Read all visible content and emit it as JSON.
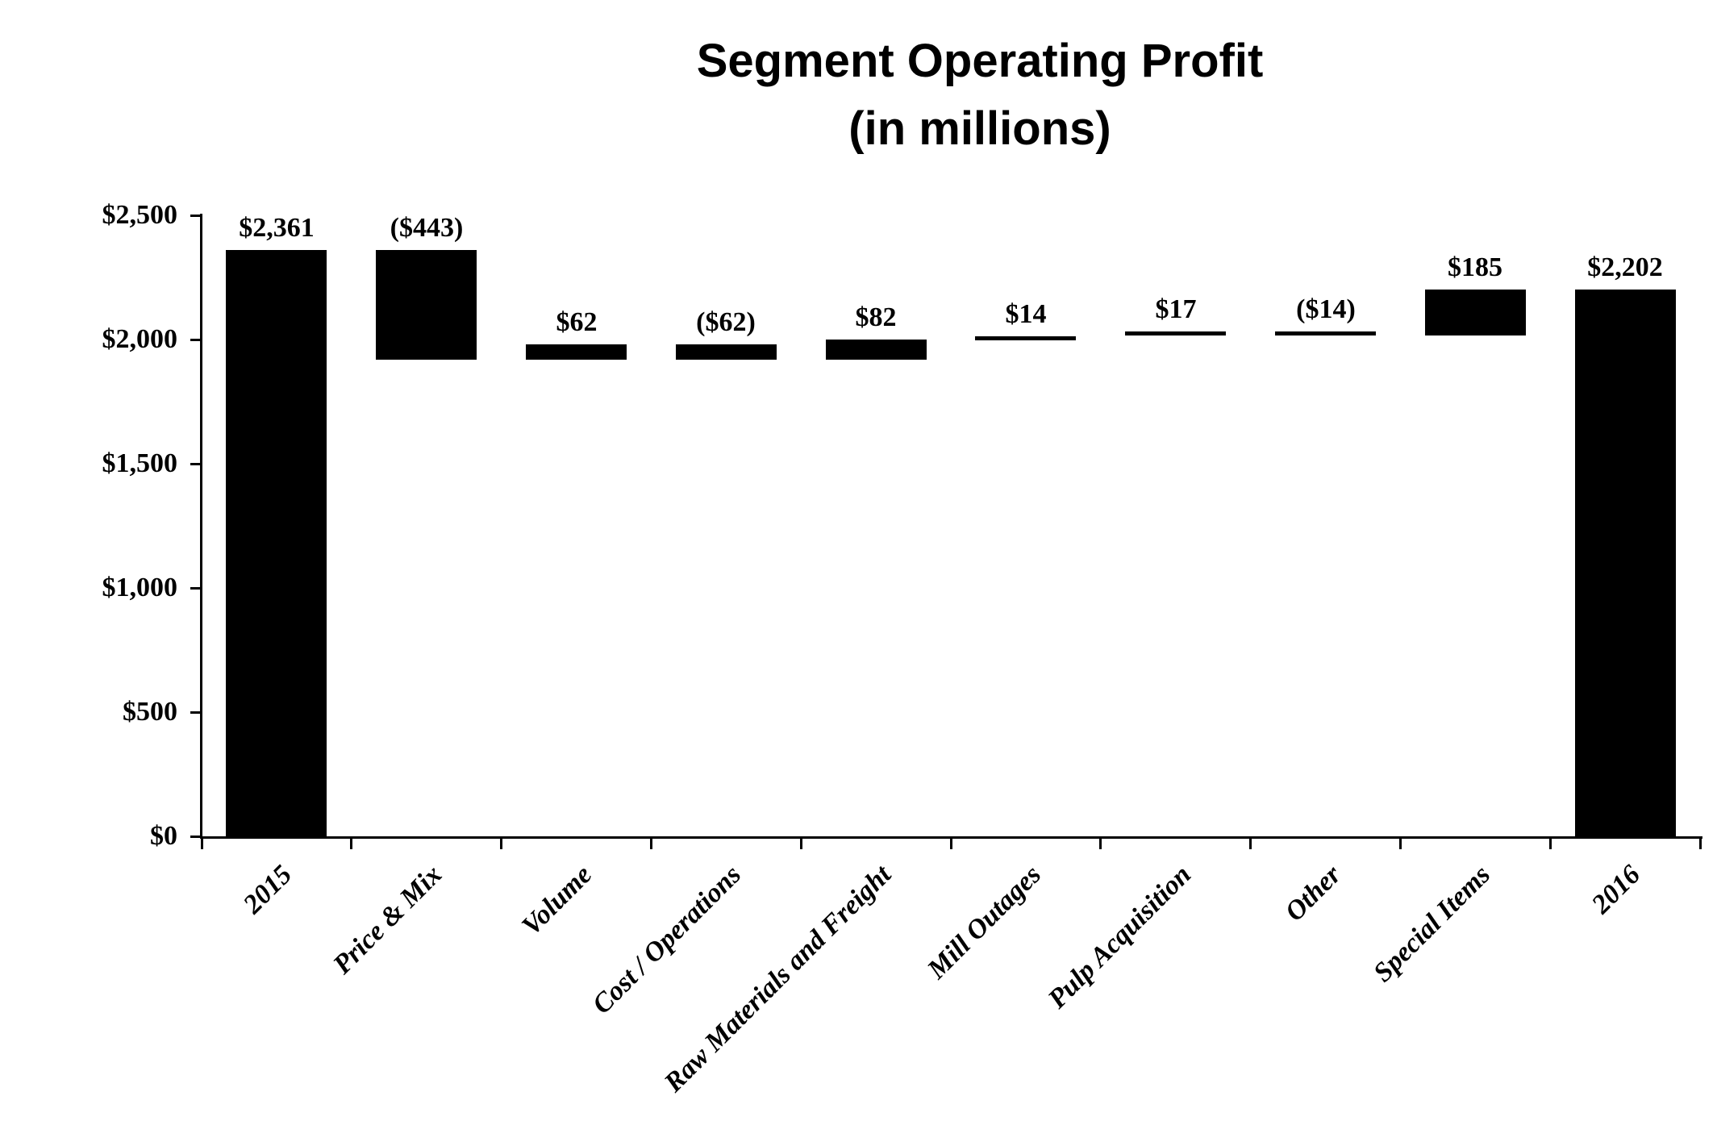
{
  "title": {
    "line1": "Segment Operating Profit",
    "line2": "(in millions)"
  },
  "colors": {
    "bar": "#000000",
    "axis": "#000000",
    "text": "#000000",
    "background": "#ffffff"
  },
  "chart_data": {
    "type": "bar",
    "subtype": "waterfall",
    "title": "Segment Operating Profit (in millions)",
    "xlabel": "",
    "ylabel": "",
    "ylim": [
      0,
      2500
    ],
    "grid": false,
    "legend": false,
    "y_axis_ticks": [
      {
        "value": 0,
        "label": "$0"
      },
      {
        "value": 500,
        "label": "$500"
      },
      {
        "value": 1000,
        "label": "$1,000"
      },
      {
        "value": 1500,
        "label": "$1,500"
      },
      {
        "value": 2000,
        "label": "$2,000"
      },
      {
        "value": 2500,
        "label": "$2,500"
      }
    ],
    "categories": [
      "2015",
      "Price & Mix",
      "Volume",
      "Cost / Operations",
      "Raw Materials and Freight",
      "Mill Outages",
      "Pulp Acquisition",
      "Other",
      "Special Items",
      "2016"
    ],
    "values": [
      2361,
      -443,
      62,
      -62,
      82,
      14,
      17,
      -14,
      185,
      2202
    ],
    "data_labels": [
      "$2,361",
      "($443)",
      "$62",
      "($62)",
      "$82",
      "$14",
      "$17",
      "($14)",
      "$185",
      "$2,202"
    ],
    "bars": [
      {
        "category": "2015",
        "label": "$2,361",
        "value": 2361,
        "base": 0,
        "top": 2361,
        "role": "total"
      },
      {
        "category": "Price & Mix",
        "label": "($443)",
        "value": -443,
        "base": 1918,
        "top": 2361,
        "role": "decrease"
      },
      {
        "category": "Volume",
        "label": "$62",
        "value": 62,
        "base": 1918,
        "top": 1980,
        "role": "increase"
      },
      {
        "category": "Cost / Operations",
        "label": "($62)",
        "value": -62,
        "base": 1918,
        "top": 1980,
        "role": "decrease"
      },
      {
        "category": "Raw Materials and Freight",
        "label": "$82",
        "value": 82,
        "base": 1918,
        "top": 2000,
        "role": "increase"
      },
      {
        "category": "Mill Outages",
        "label": "$14",
        "value": 14,
        "base": 2000,
        "top": 2014,
        "role": "increase"
      },
      {
        "category": "Pulp Acquisition",
        "label": "$17",
        "value": 17,
        "base": 2014,
        "top": 2031,
        "role": "increase"
      },
      {
        "category": "Other",
        "label": "($14)",
        "value": -14,
        "base": 2017,
        "top": 2031,
        "role": "decrease"
      },
      {
        "category": "Special Items",
        "label": "$185",
        "value": 185,
        "base": 2017,
        "top": 2202,
        "role": "increase"
      },
      {
        "category": "2016",
        "label": "$2,202",
        "value": 2202,
        "base": 0,
        "top": 2202,
        "role": "total"
      }
    ]
  }
}
